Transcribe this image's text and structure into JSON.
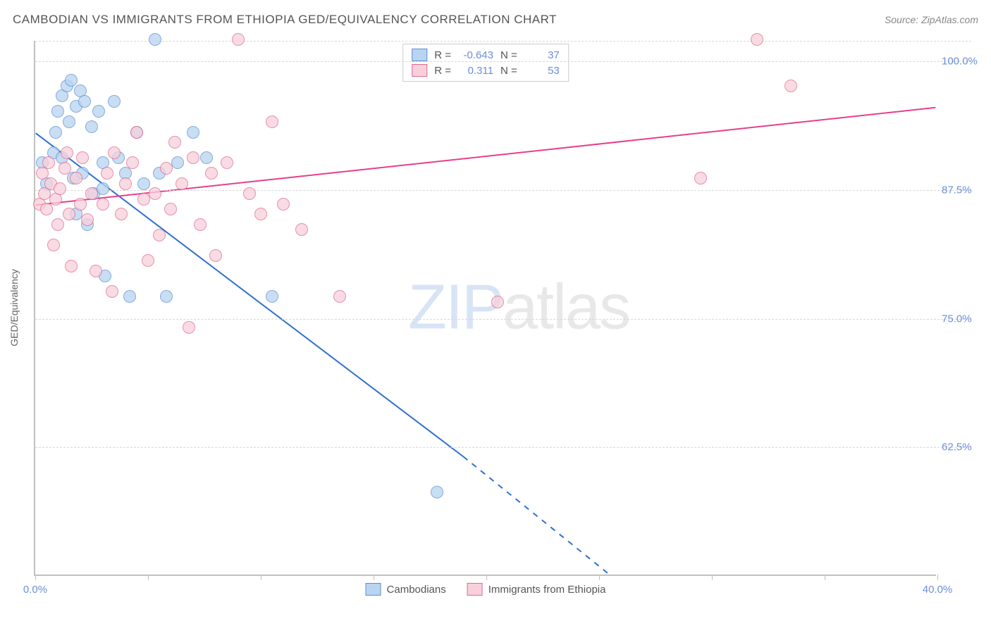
{
  "title": "CAMBODIAN VS IMMIGRANTS FROM ETHIOPIA GED/EQUIVALENCY CORRELATION CHART",
  "source_prefix": "Source: ",
  "source": "ZipAtlas.com",
  "y_axis_title": "GED/Equivalency",
  "watermark_a": "ZIP",
  "watermark_b": "atlas",
  "chart": {
    "x_min": 0.0,
    "x_max": 40.0,
    "y_min": 50.0,
    "y_max": 102.0,
    "x_ticks": [
      0.0,
      5.0,
      10.0,
      15.0,
      20.0,
      25.0,
      30.0,
      35.0,
      40.0
    ],
    "x_tick_labels": {
      "0": "0.0%",
      "40": "40.0%"
    },
    "y_gridlines": [
      62.5,
      75.0,
      87.5,
      100.0,
      102.0
    ],
    "y_tick_labels": {
      "62.5": "62.5%",
      "75.0": "75.0%",
      "87.5": "87.5%",
      "100.0": "100.0%"
    },
    "background": "#ffffff",
    "grid_color": "#d8d8d8",
    "axis_color": "#c0c0c0",
    "label_color": "#6a8fd8"
  },
  "series": [
    {
      "name": "Cambodians",
      "fill": "#b8d4f0",
      "stroke": "#5b8fd6",
      "line_color": "#2e6fd0",
      "r_value": "-0.643",
      "n_value": "37",
      "marker_radius": 9,
      "line_width": 2,
      "trend": {
        "x1": 0.0,
        "y1": 93.0,
        "x2": 19.0,
        "y2": 61.5,
        "dash_x2": 25.5,
        "dash_y2": 50.0
      },
      "points": [
        {
          "x": 0.3,
          "y": 90.0
        },
        {
          "x": 0.5,
          "y": 88.0
        },
        {
          "x": 0.8,
          "y": 91.0
        },
        {
          "x": 0.9,
          "y": 93.0
        },
        {
          "x": 1.0,
          "y": 95.0
        },
        {
          "x": 1.2,
          "y": 96.5
        },
        {
          "x": 1.2,
          "y": 90.5
        },
        {
          "x": 1.4,
          "y": 97.5
        },
        {
          "x": 1.5,
          "y": 94.0
        },
        {
          "x": 1.6,
          "y": 98.0
        },
        {
          "x": 1.7,
          "y": 88.5
        },
        {
          "x": 1.8,
          "y": 95.5
        },
        {
          "x": 1.8,
          "y": 85.0
        },
        {
          "x": 2.0,
          "y": 97.0
        },
        {
          "x": 2.1,
          "y": 89.0
        },
        {
          "x": 2.2,
          "y": 96.0
        },
        {
          "x": 2.3,
          "y": 84.0
        },
        {
          "x": 2.5,
          "y": 93.5
        },
        {
          "x": 2.6,
          "y": 87.0
        },
        {
          "x": 2.8,
          "y": 95.0
        },
        {
          "x": 3.0,
          "y": 87.5
        },
        {
          "x": 3.0,
          "y": 90.0
        },
        {
          "x": 3.1,
          "y": 79.0
        },
        {
          "x": 3.5,
          "y": 96.0
        },
        {
          "x": 3.7,
          "y": 90.5
        },
        {
          "x": 4.0,
          "y": 89.0
        },
        {
          "x": 4.2,
          "y": 77.0
        },
        {
          "x": 4.5,
          "y": 93.0
        },
        {
          "x": 4.8,
          "y": 88.0
        },
        {
          "x": 5.3,
          "y": 102.0
        },
        {
          "x": 5.5,
          "y": 89.0
        },
        {
          "x": 5.8,
          "y": 77.0
        },
        {
          "x": 6.3,
          "y": 90.0
        },
        {
          "x": 7.0,
          "y": 93.0
        },
        {
          "x": 7.6,
          "y": 90.5
        },
        {
          "x": 10.5,
          "y": 77.0
        },
        {
          "x": 17.8,
          "y": 58.0
        }
      ]
    },
    {
      "name": "Immigrants from Ethiopia",
      "fill": "#f7d0dc",
      "stroke": "#e06a8f",
      "line_color": "#e83e8c",
      "r_value": "0.311",
      "n_value": "53",
      "marker_radius": 9,
      "line_width": 2,
      "trend": {
        "x1": 0.0,
        "y1": 86.0,
        "x2": 40.0,
        "y2": 95.5
      },
      "points": [
        {
          "x": 0.2,
          "y": 86.0
        },
        {
          "x": 0.3,
          "y": 89.0
        },
        {
          "x": 0.4,
          "y": 87.0
        },
        {
          "x": 0.5,
          "y": 85.5
        },
        {
          "x": 0.6,
          "y": 90.0
        },
        {
          "x": 0.7,
          "y": 88.0
        },
        {
          "x": 0.8,
          "y": 82.0
        },
        {
          "x": 0.9,
          "y": 86.5
        },
        {
          "x": 1.0,
          "y": 84.0
        },
        {
          "x": 1.1,
          "y": 87.5
        },
        {
          "x": 1.3,
          "y": 89.5
        },
        {
          "x": 1.4,
          "y": 91.0
        },
        {
          "x": 1.5,
          "y": 85.0
        },
        {
          "x": 1.6,
          "y": 80.0
        },
        {
          "x": 1.8,
          "y": 88.5
        },
        {
          "x": 2.0,
          "y": 86.0
        },
        {
          "x": 2.1,
          "y": 90.5
        },
        {
          "x": 2.3,
          "y": 84.5
        },
        {
          "x": 2.5,
          "y": 87.0
        },
        {
          "x": 2.7,
          "y": 79.5
        },
        {
          "x": 3.0,
          "y": 86.0
        },
        {
          "x": 3.2,
          "y": 89.0
        },
        {
          "x": 3.4,
          "y": 77.5
        },
        {
          "x": 3.5,
          "y": 91.0
        },
        {
          "x": 3.8,
          "y": 85.0
        },
        {
          "x": 4.0,
          "y": 88.0
        },
        {
          "x": 4.3,
          "y": 90.0
        },
        {
          "x": 4.5,
          "y": 93.0
        },
        {
          "x": 4.8,
          "y": 86.5
        },
        {
          "x": 5.0,
          "y": 80.5
        },
        {
          "x": 5.3,
          "y": 87.0
        },
        {
          "x": 5.5,
          "y": 83.0
        },
        {
          "x": 5.8,
          "y": 89.5
        },
        {
          "x": 6.0,
          "y": 85.5
        },
        {
          "x": 6.2,
          "y": 92.0
        },
        {
          "x": 6.5,
          "y": 88.0
        },
        {
          "x": 6.8,
          "y": 74.0
        },
        {
          "x": 7.0,
          "y": 90.5
        },
        {
          "x": 7.3,
          "y": 84.0
        },
        {
          "x": 7.8,
          "y": 89.0
        },
        {
          "x": 8.0,
          "y": 81.0
        },
        {
          "x": 8.5,
          "y": 90.0
        },
        {
          "x": 9.0,
          "y": 102.0
        },
        {
          "x": 9.5,
          "y": 87.0
        },
        {
          "x": 10.0,
          "y": 85.0
        },
        {
          "x": 10.5,
          "y": 94.0
        },
        {
          "x": 11.0,
          "y": 86.0
        },
        {
          "x": 11.8,
          "y": 83.5
        },
        {
          "x": 13.5,
          "y": 77.0
        },
        {
          "x": 20.5,
          "y": 76.5
        },
        {
          "x": 29.5,
          "y": 88.5
        },
        {
          "x": 32.0,
          "y": 102.0
        },
        {
          "x": 33.5,
          "y": 97.5
        }
      ]
    }
  ],
  "legend_top": {
    "r_label": "R =",
    "n_label": "N ="
  }
}
